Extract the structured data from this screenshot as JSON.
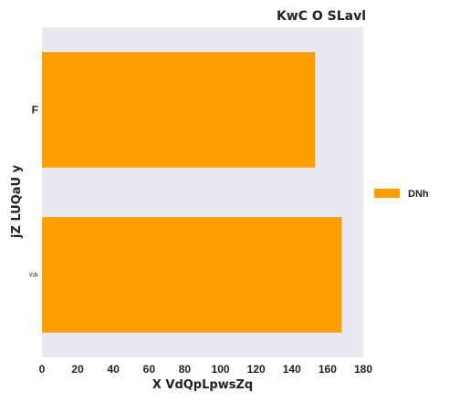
{
  "chart_data": {
    "type": "bar",
    "orientation": "horizontal",
    "title": "KwC O  SLavl",
    "xlabel": "X  VdQpLpwsZq",
    "ylabel": "jZ LUQaU y",
    "categories": [
      "F",
      "Vdk"
    ],
    "category_font_sizes": [
      "normal",
      "tiny"
    ],
    "series": [
      {
        "name": "DNh",
        "color": "#ff9e00",
        "values": [
          153,
          168
        ]
      }
    ],
    "xlim": [
      0,
      180
    ],
    "xticks": [
      0,
      20,
      40,
      60,
      80,
      100,
      120,
      140,
      160,
      180
    ],
    "grid": false,
    "background": "#e8e8f0",
    "legend_position": "right"
  }
}
